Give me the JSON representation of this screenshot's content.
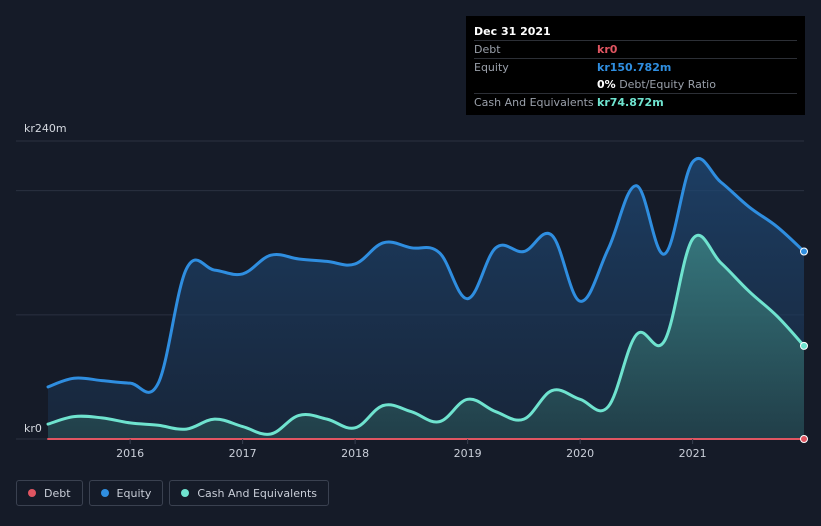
{
  "tooltip": {
    "date": "Dec 31 2021",
    "debt_label": "Debt",
    "debt_value": "kr0",
    "equity_label": "Equity",
    "equity_value": "kr150.782m",
    "ratio_value": "0%",
    "ratio_label": "Debt/Equity Ratio",
    "cash_label": "Cash And Equivalents",
    "cash_value": "kr74.872m"
  },
  "legend": [
    {
      "label": "Debt",
      "color": "#e05561"
    },
    {
      "label": "Equity",
      "color": "#2f8ee0"
    },
    {
      "label": "Cash And Equivalents",
      "color": "#6fe3cf"
    }
  ],
  "chart_data": {
    "type": "area",
    "y_top_label": "kr240m",
    "y_bottom_label": "kr0",
    "ylim": [
      0,
      240
    ],
    "xlim": [
      2015.27,
      2021.99
    ],
    "x_ticks": [
      {
        "value": 2016,
        "label": "2016"
      },
      {
        "value": 2017,
        "label": "2017"
      },
      {
        "value": 2018,
        "label": "2018"
      },
      {
        "value": 2019,
        "label": "2019"
      },
      {
        "value": 2020,
        "label": "2020"
      },
      {
        "value": 2021,
        "label": "2021"
      }
    ],
    "grid_values": [
      0,
      100,
      200,
      240
    ],
    "series": [
      {
        "name": "Equity",
        "color": "#2f8ee0",
        "points": [
          [
            2015.27,
            42
          ],
          [
            2015.5,
            49
          ],
          [
            2015.75,
            47
          ],
          [
            2016.0,
            45
          ],
          [
            2016.25,
            45
          ],
          [
            2016.5,
            137
          ],
          [
            2016.75,
            136
          ],
          [
            2017.0,
            133
          ],
          [
            2017.25,
            148
          ],
          [
            2017.5,
            145
          ],
          [
            2017.75,
            143
          ],
          [
            2018.0,
            141
          ],
          [
            2018.25,
            158
          ],
          [
            2018.5,
            154
          ],
          [
            2018.75,
            150
          ],
          [
            2019.0,
            113
          ],
          [
            2019.25,
            154
          ],
          [
            2019.5,
            151
          ],
          [
            2019.75,
            164
          ],
          [
            2020.0,
            111
          ],
          [
            2020.25,
            153
          ],
          [
            2020.5,
            204
          ],
          [
            2020.75,
            149
          ],
          [
            2021.0,
            223
          ],
          [
            2021.25,
            207
          ],
          [
            2021.5,
            187
          ],
          [
            2021.75,
            171
          ],
          [
            2021.99,
            151
          ]
        ]
      },
      {
        "name": "Cash And Equivalents",
        "color": "#6fe3cf",
        "points": [
          [
            2015.27,
            12
          ],
          [
            2015.5,
            18
          ],
          [
            2015.75,
            17
          ],
          [
            2016.0,
            13
          ],
          [
            2016.25,
            11
          ],
          [
            2016.5,
            8
          ],
          [
            2016.75,
            16
          ],
          [
            2017.0,
            10
          ],
          [
            2017.25,
            4
          ],
          [
            2017.5,
            19
          ],
          [
            2017.75,
            16
          ],
          [
            2018.0,
            9
          ],
          [
            2018.25,
            27
          ],
          [
            2018.5,
            22
          ],
          [
            2018.75,
            14
          ],
          [
            2019.0,
            32
          ],
          [
            2019.25,
            22
          ],
          [
            2019.5,
            16
          ],
          [
            2019.75,
            39
          ],
          [
            2020.0,
            32
          ],
          [
            2020.25,
            26
          ],
          [
            2020.5,
            84
          ],
          [
            2020.75,
            79
          ],
          [
            2021.0,
            161
          ],
          [
            2021.25,
            142
          ],
          [
            2021.5,
            119
          ],
          [
            2021.75,
            99
          ],
          [
            2021.99,
            75
          ]
        ]
      },
      {
        "name": "Debt",
        "color": "#e05561",
        "points": [
          [
            2015.27,
            0
          ],
          [
            2021.99,
            0
          ]
        ]
      }
    ]
  }
}
